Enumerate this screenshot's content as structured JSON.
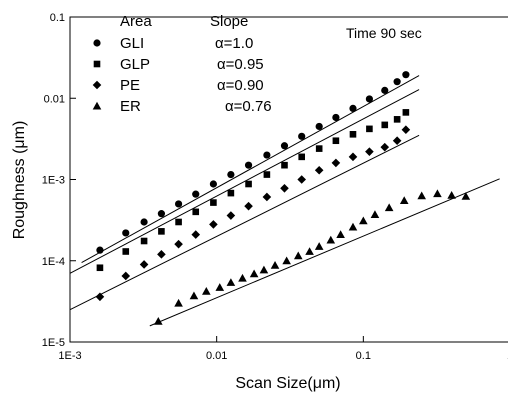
{
  "chart_data": {
    "type": "scatter",
    "x_scale": "log",
    "y_scale": "log",
    "xlabel": "Scan Size(μm)",
    "ylabel": "Roughness (μm)",
    "xlim": [
      0.001,
      1
    ],
    "ylim": [
      1e-05,
      0.1
    ],
    "x_ticks": [
      {
        "value": 0.001,
        "label": "1E-3"
      },
      {
        "value": 0.01,
        "label": "0.01"
      },
      {
        "value": 0.1,
        "label": "0.1"
      },
      {
        "value": 1,
        "label": "1"
      }
    ],
    "y_ticks": [
      {
        "value": 1e-05,
        "label": "1E-5"
      },
      {
        "value": 0.0001,
        "label": "1E-4"
      },
      {
        "value": 0.001,
        "label": "1E-3"
      },
      {
        "value": 0.01,
        "label": "0.01"
      },
      {
        "value": 0.1,
        "label": "0.1"
      }
    ],
    "grid": false,
    "legend": {
      "placement": "top-left",
      "header_area": "Area",
      "header_slope": "Slope"
    },
    "annotation": "Time 90 sec",
    "series": [
      {
        "name": "GLI",
        "marker": "circle",
        "slope_label": "α=1.0",
        "x": [
          0.0016,
          0.0024,
          0.0032,
          0.0042,
          0.0055,
          0.0072,
          0.0095,
          0.0125,
          0.0165,
          0.022,
          0.029,
          0.038,
          0.05,
          0.065,
          0.085,
          0.11,
          0.14,
          0.17,
          0.195
        ],
        "y": [
          0.000135,
          0.00022,
          0.0003,
          0.00038,
          0.0005,
          0.00066,
          0.00088,
          0.00115,
          0.0015,
          0.002,
          0.0026,
          0.0034,
          0.0045,
          0.0058,
          0.0075,
          0.0098,
          0.0125,
          0.016,
          0.0195
        ]
      },
      {
        "name": "GLP",
        "marker": "square",
        "slope_label": "α=0.95",
        "x": [
          0.0016,
          0.0024,
          0.0032,
          0.0042,
          0.0055,
          0.0072,
          0.0095,
          0.0125,
          0.0165,
          0.022,
          0.029,
          0.038,
          0.05,
          0.065,
          0.085,
          0.11,
          0.14,
          0.17,
          0.195
        ],
        "y": [
          8.2e-05,
          0.00013,
          0.000175,
          0.00023,
          0.0003,
          0.0004,
          0.00052,
          0.00068,
          0.00088,
          0.00115,
          0.0015,
          0.0019,
          0.0024,
          0.003,
          0.0036,
          0.0042,
          0.0047,
          0.0055,
          0.0067
        ]
      },
      {
        "name": "PE",
        "marker": "diamond",
        "slope_label": "α=0.90",
        "x": [
          0.0016,
          0.0024,
          0.0032,
          0.0042,
          0.0055,
          0.0072,
          0.0095,
          0.0125,
          0.0165,
          0.022,
          0.029,
          0.038,
          0.05,
          0.065,
          0.085,
          0.11,
          0.14,
          0.17,
          0.195
        ],
        "y": [
          3.6e-05,
          6.5e-05,
          9e-05,
          0.00012,
          0.00016,
          0.00021,
          0.00028,
          0.00036,
          0.00047,
          0.00061,
          0.00078,
          0.001,
          0.0013,
          0.0016,
          0.0019,
          0.0022,
          0.0025,
          0.003,
          0.0041
        ]
      },
      {
        "name": "ER",
        "marker": "triangle",
        "slope_label": "α=0.76",
        "x": [
          0.004,
          0.0055,
          0.007,
          0.0085,
          0.0105,
          0.0125,
          0.015,
          0.018,
          0.021,
          0.025,
          0.03,
          0.036,
          0.043,
          0.05,
          0.06,
          0.07,
          0.085,
          0.1,
          0.12,
          0.15,
          0.19,
          0.25,
          0.32,
          0.4,
          0.5
        ],
        "y": [
          1.8e-05,
          3e-05,
          3.7e-05,
          4.2e-05,
          4.7e-05,
          5.4e-05,
          6.1e-05,
          6.9e-05,
          7.7e-05,
          8.8e-05,
          0.0001,
          0.000115,
          0.00013,
          0.00015,
          0.00018,
          0.00021,
          0.00026,
          0.00031,
          0.00037,
          0.00045,
          0.00055,
          0.00063,
          0.00067,
          0.00064,
          0.00062
        ]
      }
    ],
    "fit_lines": [
      {
        "series": "GLI",
        "x": [
          0.0012,
          0.24
        ],
        "y": [
          9.5e-05,
          0.019
        ]
      },
      {
        "series": "GLP",
        "x": [
          0.001,
          0.24
        ],
        "y": [
          7e-05,
          0.0128
        ]
      },
      {
        "series": "PE",
        "x": [
          0.001,
          0.24
        ],
        "y": [
          2.5e-05,
          0.0035
        ]
      },
      {
        "series": "ER",
        "x": [
          0.0035,
          0.85
        ],
        "y": [
          1.58e-05,
          0.00102
        ]
      }
    ]
  }
}
